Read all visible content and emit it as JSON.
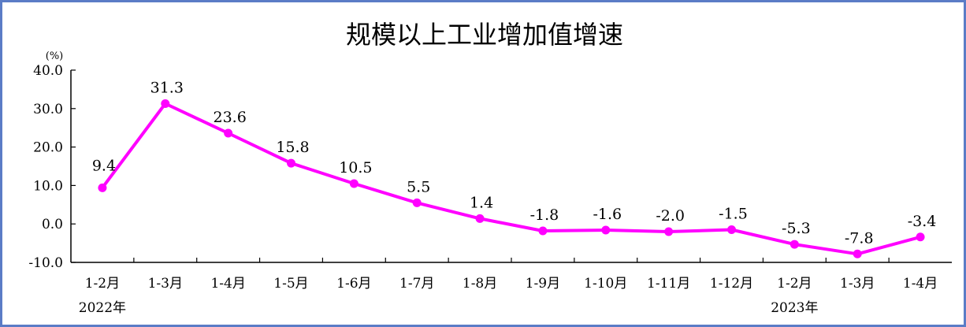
{
  "chart_data": {
    "type": "line",
    "title": "规模以上工业增加值增速",
    "ylabel": "(%)",
    "xlabel": "",
    "ylim": [
      -10.0,
      40.0
    ],
    "yticks": [
      "40.0",
      "30.0",
      "20.0",
      "10.0",
      "0.0",
      "-10.0"
    ],
    "ytick_values": [
      40,
      30,
      20,
      10,
      0,
      -10
    ],
    "categories": [
      "1-2月",
      "1-3月",
      "1-4月",
      "1-5月",
      "1-6月",
      "1-7月",
      "1-8月",
      "1-9月",
      "1-10月",
      "1-11月",
      "1-12月",
      "1-2月",
      "1-3月",
      "1-4月"
    ],
    "year_labels": [
      {
        "text": "2022年",
        "category_index": 0
      },
      {
        "text": "2023年",
        "category_index": 11
      }
    ],
    "series": [
      {
        "values": [
          9.4,
          31.3,
          23.6,
          15.8,
          10.5,
          5.5,
          1.4,
          -1.8,
          -1.6,
          -2.0,
          -1.5,
          -5.3,
          -7.8,
          -3.4
        ],
        "labels": [
          "9.4",
          "31.3",
          "23.6",
          "15.8",
          "10.5",
          "5.5",
          "1.4",
          "-1.8",
          "-1.6",
          "-2.0",
          "-1.5",
          "-5.3",
          "-7.8",
          "-3.4"
        ],
        "color": "#ff00ff"
      }
    ],
    "grid": false,
    "legend": "none"
  }
}
